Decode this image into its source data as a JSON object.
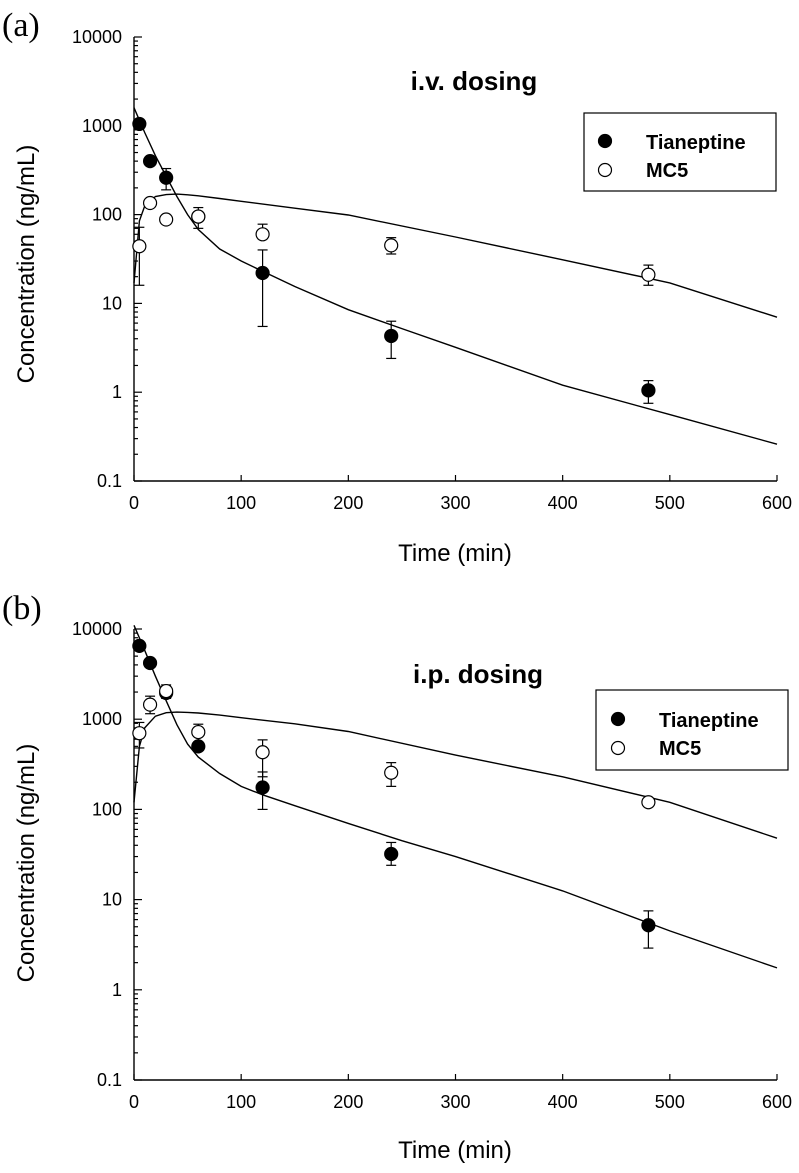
{
  "chart_data": [
    {
      "type": "scatter",
      "panel_label": "(a)",
      "title": "i.v. dosing",
      "xlabel": "Time (min)",
      "ylabel": "Concentration (ng/mL)",
      "xlim": [
        0,
        600
      ],
      "ylim": [
        0.1,
        10000
      ],
      "yscale": "log",
      "x_ticks": [
        "0",
        "100",
        "200",
        "300",
        "400",
        "500",
        "600"
      ],
      "y_ticks": [
        "0.1",
        "1",
        "10",
        "100",
        "1000",
        "10000"
      ],
      "legend_position": "top-right",
      "series": [
        {
          "name": "Tianeptine",
          "marker": "filled-circle",
          "x": [
            5,
            15,
            30,
            60,
            120,
            240,
            480
          ],
          "y": [
            1050,
            400,
            260,
            95,
            22,
            4.3,
            1.05
          ],
          "err_low": [
            null,
            null,
            190,
            null,
            5.5,
            2.4,
            0.75
          ],
          "err_high": [
            null,
            null,
            330,
            null,
            40,
            6.3,
            1.35
          ]
        },
        {
          "name": "MC5",
          "marker": "open-circle",
          "x": [
            5,
            15,
            30,
            60,
            120,
            240,
            480
          ],
          "y": [
            44,
            135,
            88,
            95,
            60,
            45,
            21
          ],
          "err_low": [
            16,
            null,
            null,
            70,
            null,
            36,
            16
          ],
          "err_high": [
            72,
            null,
            null,
            120,
            78,
            55,
            27
          ]
        }
      ],
      "fit_curves": [
        {
          "name": "Tianeptine fit",
          "x": [
            0,
            10,
            20,
            30,
            40,
            50,
            60,
            80,
            100,
            120,
            150,
            200,
            250,
            300,
            400,
            500,
            600
          ],
          "y": [
            1600,
            840,
            460,
            270,
            160,
            100,
            68,
            41,
            30,
            23,
            15.5,
            8.5,
            5.2,
            3.2,
            1.2,
            0.56,
            0.26
          ]
        },
        {
          "name": "MC5 fit",
          "x": [
            0,
            5,
            10,
            20,
            30,
            40,
            50,
            60,
            80,
            100,
            150,
            200,
            300,
            400,
            500,
            600
          ],
          "y": [
            17,
            85,
            125,
            160,
            168,
            170,
            167,
            163,
            152,
            141,
            118,
            99,
            56,
            31,
            17,
            7
          ]
        }
      ]
    },
    {
      "type": "scatter",
      "panel_label": "(b)",
      "title": "i.p. dosing",
      "xlabel": "Time (min)",
      "ylabel": "Concentration (ng/mL)",
      "xlim": [
        0,
        600
      ],
      "ylim": [
        0.1,
        10000
      ],
      "yscale": "log",
      "x_ticks": [
        "0",
        "100",
        "200",
        "300",
        "400",
        "500",
        "600"
      ],
      "y_ticks": [
        "0.1",
        "1",
        "10",
        "100",
        "1000",
        "10000"
      ],
      "legend_position": "top-right",
      "series": [
        {
          "name": "Tianeptine",
          "marker": "filled-circle",
          "x": [
            5,
            15,
            30,
            60,
            120,
            240,
            480
          ],
          "y": [
            6500,
            4200,
            1950,
            500,
            175,
            32,
            5.2
          ],
          "err_low": [
            null,
            null,
            null,
            null,
            100,
            24,
            2.9
          ],
          "err_high": [
            null,
            null,
            null,
            null,
            260,
            43,
            7.5
          ]
        },
        {
          "name": "MC5",
          "marker": "open-circle",
          "x": [
            5,
            15,
            30,
            60,
            120,
            240,
            480
          ],
          "y": [
            700,
            1450,
            2050,
            720,
            430,
            255,
            120
          ],
          "err_low": [
            480,
            1150,
            1700,
            560,
            230,
            180,
            null
          ],
          "err_high": [
            920,
            1800,
            2400,
            880,
            590,
            330,
            null
          ]
        }
      ],
      "fit_curves": [
        {
          "name": "Tianeptine fit",
          "x": [
            0,
            10,
            20,
            30,
            40,
            50,
            60,
            80,
            100,
            120,
            150,
            200,
            250,
            300,
            400,
            500,
            600
          ],
          "y": [
            11000,
            5800,
            3000,
            1600,
            870,
            530,
            380,
            250,
            180,
            145,
            110,
            70,
            45,
            30,
            12.5,
            4.5,
            1.75
          ]
        },
        {
          "name": "MC5 fit",
          "x": [
            0,
            5,
            10,
            20,
            30,
            40,
            50,
            60,
            80,
            100,
            150,
            200,
            300,
            400,
            500,
            600
          ],
          "y": [
            120,
            500,
            800,
            1080,
            1180,
            1200,
            1190,
            1170,
            1110,
            1040,
            890,
            730,
            400,
            230,
            120,
            48
          ]
        }
      ]
    }
  ]
}
